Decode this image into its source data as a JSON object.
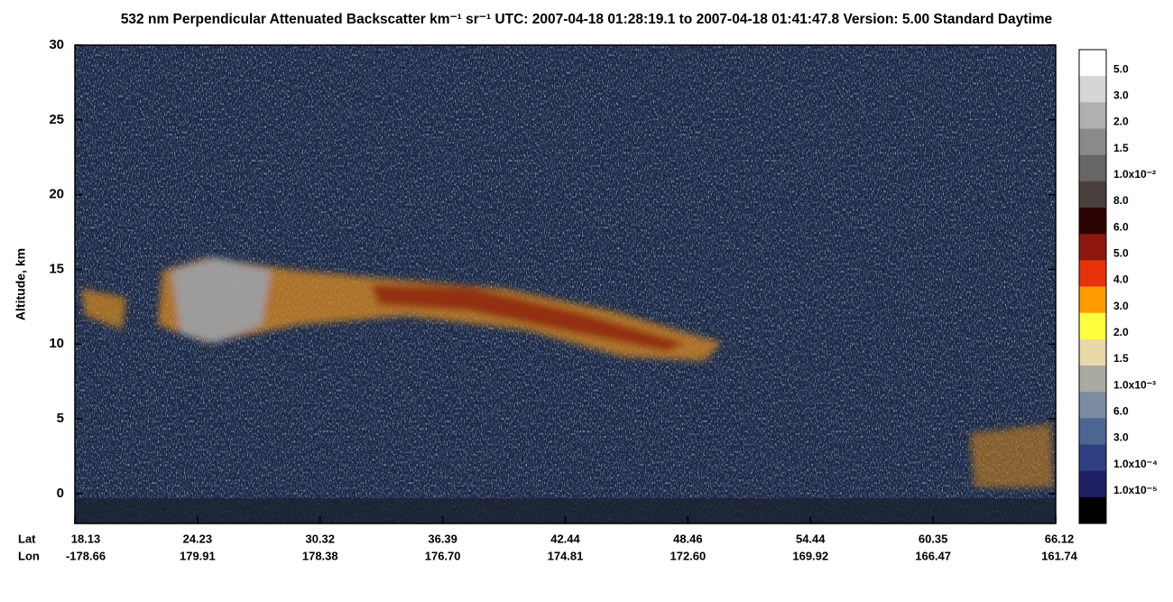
{
  "chart_data": {
    "type": "heatmap",
    "title": "532 nm Perpendicular Attenuated Backscatter km⁻¹ sr⁻¹  UTC: 2007-04-18 01:28:19.1 to 2007-04-18 01:41:47.8  Version: 5.00 Standard Daytime",
    "ylabel": "Altitude, km",
    "ylim": [
      -2,
      30
    ],
    "yticks": [
      0,
      5,
      10,
      15,
      20,
      25,
      30
    ],
    "xtick_rows": [
      {
        "name": "Lat",
        "labels": [
          "18.13",
          "24.23",
          "30.32",
          "36.39",
          "42.44",
          "48.46",
          "54.44",
          "60.35",
          "66.12"
        ]
      },
      {
        "name": "Lon",
        "labels": [
          "-178.66",
          "179.91",
          "178.38",
          "176.70",
          "174.81",
          "172.60",
          "169.92",
          "166.47",
          "161.74"
        ]
      }
    ],
    "colorbar": {
      "colors": [
        "#ffffff",
        "#d6d6d6",
        "#b0b0b0",
        "#8a8a8a",
        "#666666",
        "#4a403c",
        "#2c0404",
        "#8c1810",
        "#e8320c",
        "#ff9c00",
        "#ffff40",
        "#ead9a8",
        "#a9aba2",
        "#7c8ca0",
        "#4e6692",
        "#303f82",
        "#1e1e62",
        "#000000"
      ],
      "labels": [
        "5.0",
        "3.0",
        "2.0",
        "1.5",
        "1.0x10⁻²",
        "8.0",
        "6.0",
        "5.0",
        "4.0",
        "3.0",
        "2.0",
        "1.5",
        "1.0x10⁻³",
        "6.0",
        "3.0",
        "1.0x10⁻⁴",
        "1.0x10⁻⁵"
      ]
    }
  }
}
